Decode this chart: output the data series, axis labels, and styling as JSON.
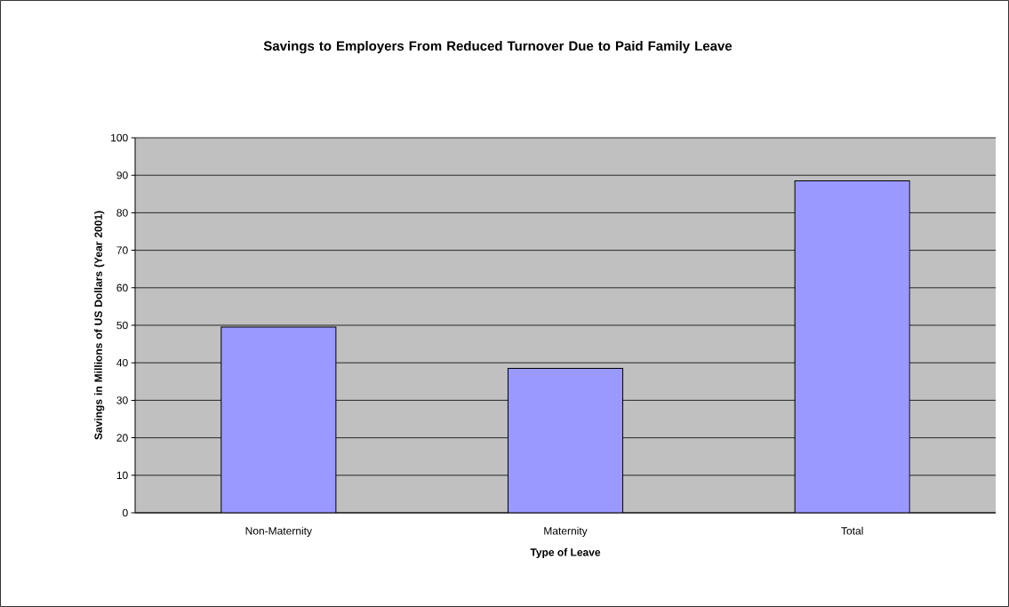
{
  "chart_data": {
    "type": "bar",
    "title": "Savings to Employers From Reduced Turnover Due to Paid Family Leave",
    "xlabel": "Type of Leave",
    "ylabel": "Savings in Millions of US Dollars (Year 2001)",
    "categories": [
      "Non-Maternity",
      "Maternity",
      "Total"
    ],
    "values": [
      49.5,
      38.5,
      88.5
    ],
    "color": "#9999ff",
    "ylim": [
      0,
      100
    ],
    "yticks": [
      0,
      10,
      20,
      30,
      40,
      50,
      60,
      70,
      80,
      90,
      100
    ],
    "grid": "y"
  }
}
